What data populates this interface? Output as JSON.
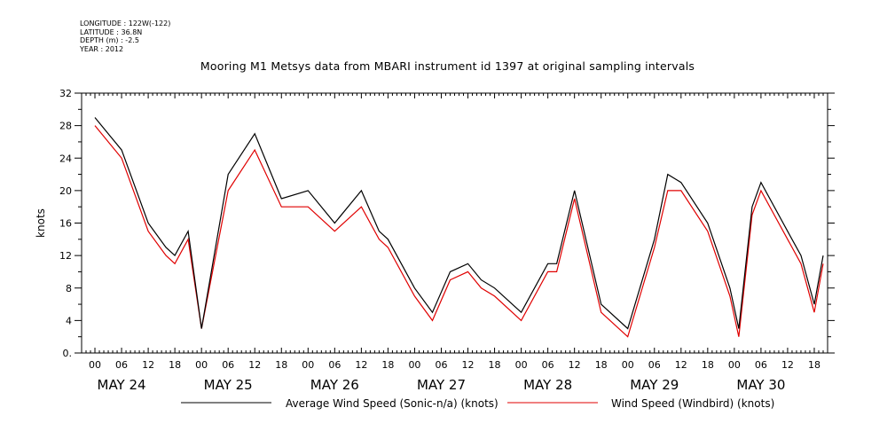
{
  "header": {
    "longitude": "LONGITUDE : 122W(-122)",
    "latitude": "LATITUDE : 36.8N",
    "depth": "DEPTH (m) : -2.5",
    "year": "YEAR : 2012",
    "title": "Mooring M1 Metsys data from MBARI instrument id 1397 at original sampling intervals"
  },
  "colors": {
    "series_avg": "#000000",
    "series_windbird": "#e00000",
    "axis": "#000000"
  },
  "chart_data": {
    "type": "line",
    "title": "Mooring M1 Metsys data from MBARI instrument id 1397 at original sampling intervals",
    "xlabel": "",
    "ylabel": "knots",
    "ylim": [
      0,
      32
    ],
    "xlim_hours": [
      -3,
      165
    ],
    "yticks": [
      0,
      4,
      8,
      12,
      16,
      20,
      24,
      28,
      32
    ],
    "ytick_labels": [
      "0.",
      "4",
      "8",
      "12",
      "16",
      "20",
      "24",
      "28",
      "32"
    ],
    "xtick_hours_label": [
      "00",
      "06",
      "12",
      "18"
    ],
    "days": [
      "MAY 24",
      "MAY 25",
      "MAY 26",
      "MAY 27",
      "MAY 28",
      "MAY 29",
      "MAY 30"
    ],
    "grid": false,
    "legend_position": "bottom",
    "x_hours": [
      0,
      6,
      12,
      16,
      18,
      21,
      24,
      30,
      36,
      42,
      48,
      54,
      60,
      64,
      66,
      72,
      76,
      80,
      84,
      87,
      90,
      96,
      102,
      104,
      108,
      114,
      120,
      126,
      129,
      132,
      138,
      143,
      145,
      148,
      150,
      156,
      159,
      162,
      164
    ],
    "series": [
      {
        "name": "Average Wind Speed (Sonic-n/a) (knots)",
        "values": [
          29,
          25,
          16,
          13,
          12,
          15,
          3,
          22,
          27,
          19,
          20,
          16,
          20,
          15,
          14,
          8,
          5,
          10,
          11,
          9,
          8,
          5,
          11,
          11,
          20,
          6,
          3,
          14,
          22,
          21,
          16,
          8,
          3,
          18,
          21,
          15,
          12,
          6,
          12
        ]
      },
      {
        "name": "Wind Speed (Windbird) (knots)",
        "values": [
          28,
          24,
          15,
          12,
          11,
          14,
          3,
          20,
          25,
          18,
          18,
          15,
          18,
          14,
          13,
          7,
          4,
          9,
          10,
          8,
          7,
          4,
          10,
          10,
          19,
          5,
          2,
          13,
          20,
          20,
          15,
          7,
          2,
          17,
          20,
          14,
          11,
          5,
          11
        ]
      }
    ]
  }
}
